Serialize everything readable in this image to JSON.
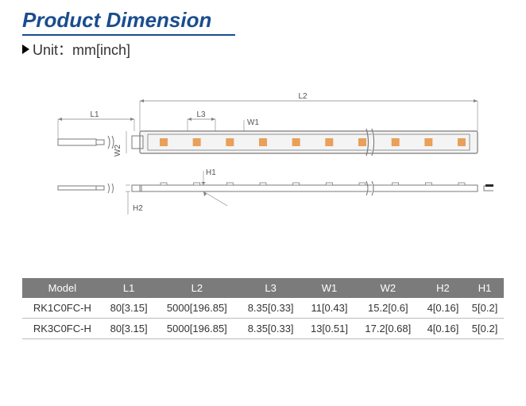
{
  "heading": {
    "title": "Product Dimension",
    "unit_label": "Unit：mm[inch]"
  },
  "diagram": {
    "labels": {
      "L1": "L1",
      "L2": "L2",
      "L3": "L3",
      "W1": "W1",
      "W2": "W2",
      "H1": "H1",
      "H2": "H2"
    },
    "colors": {
      "outline": "#7a7a7a",
      "dimline": "#808080",
      "led": "#e8a05a",
      "body_fill": "#f4f4f4",
      "black_accent": "#2a2a2a"
    },
    "led_count_top": 10
  },
  "table": {
    "columns": [
      "Model",
      "L1",
      "L2",
      "L3",
      "W1",
      "W2",
      "H2",
      "H1"
    ],
    "rows": [
      [
        "RK1C0FC-H",
        "80[3.15]",
        "5000[196.85]",
        "8.35[0.33]",
        "11[0.43]",
        "15.2[0.6]",
        "4[0.16]",
        "5[0.2]"
      ],
      [
        "RK3C0FC-H",
        "80[3.15]",
        "5000[196.85]",
        "8.35[0.33]",
        "13[0.51]",
        "17.2[0.68]",
        "4[0.16]",
        "5[0.2]"
      ]
    ],
    "header_bg": "#7b7b7b",
    "header_fg": "#ffffff",
    "row_border": "#bbbbbb",
    "font_size": 13
  }
}
